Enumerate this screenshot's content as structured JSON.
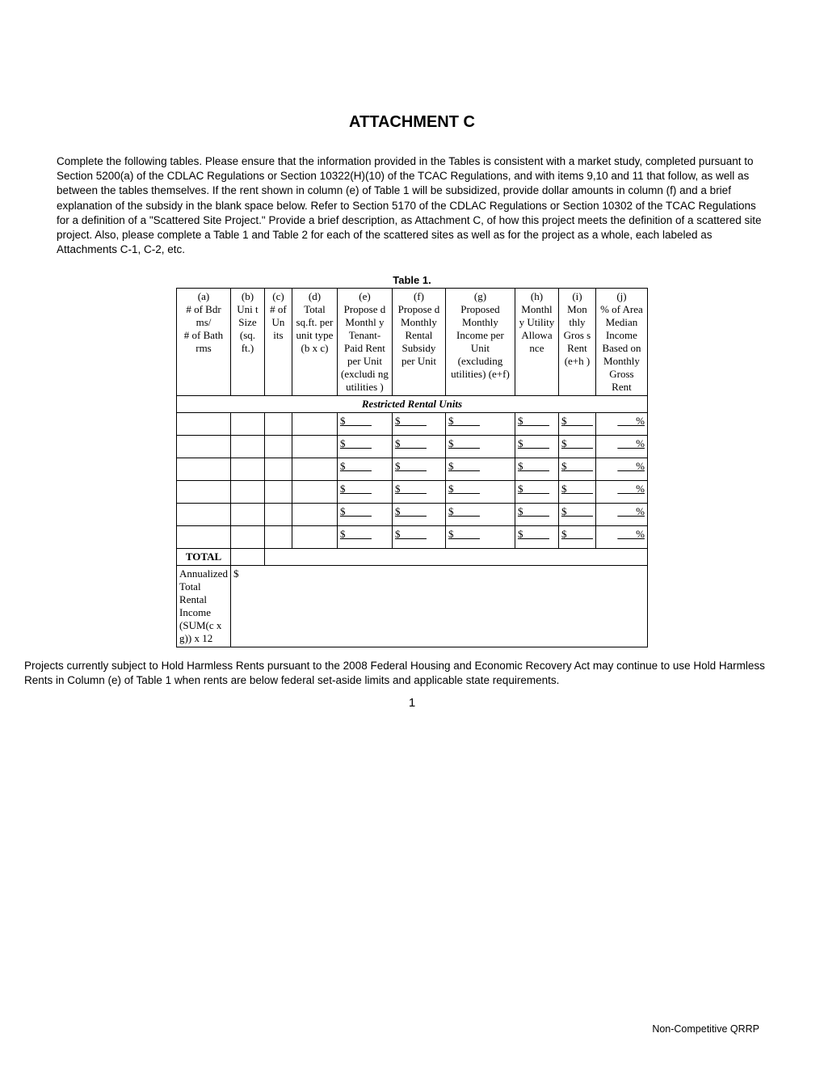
{
  "title": "ATTACHMENT C",
  "intro": "Complete the following tables. Please ensure that the information provided in the Tables is consistent with a market study, completed pursuant to Section 5200(a) of the CDLAC Regulations or Section 10322(H)(10) of the TCAC Regulations, and with items 9,10 and 11 that follow, as well as between the tables themselves.  If the rent shown in column (e) of Table 1 will be subsidized, provide dollar amounts in column (f) and a brief explanation of the subsidy in the blank space below.  Refer to Section 5170 of the CDLAC Regulations or Section 10302 of the TCAC Regulations for a definition of a \"Scattered Site Project.\"  Provide a brief description, as Attachment C, of how this project meets the definition of a scattered site project.  Also, please complete a Table 1 and Table 2 for each of the scattered sites as well as for the project as a whole, each labeled as Attachments C-1, C-2, etc.",
  "table_caption": "Table 1.",
  "headers": {
    "a": "(a)\n# of Bdrms/\n# of Bath rms",
    "b": "(b)\nUnit Size (sq. ft.)",
    "c": "(c)\n# of Units",
    "d": "(d)\nTotal sq.ft. per unit type (b x c)",
    "e": "(e)\nProposed Monthly Tenant-Paid Rent per Unit (excluding utilities)",
    "f": "(f)\nProposed Monthly Rental Subsidy per Unit",
    "g": "(g)\nProposed Monthly Income per Unit (excluding utilities) (e+f)",
    "h": "(h)\nMonthly Utility Allowance",
    "i": "(i)\nMonthly Gross Rent (e+h)",
    "j": "(j)\n% of Area Median Income Based on Monthly Gross Rent"
  },
  "section_label": "Restricted Rental Units",
  "currency": "$",
  "percent": "%",
  "blank_line": "          ",
  "blank_pct": "       ",
  "total_label": "TOTAL",
  "annual_label": "Annualized Total Rental Income (SUM(c x g)) x 12",
  "footnote": "Projects currently subject to Hold Harmless Rents pursuant to the 2008 Federal Housing and Economic Recovery Act may continue to use Hold Harmless Rents in Column (e) of Table 1 when rents are below federal set-aside limits and applicable state requirements.",
  "page_num": "1",
  "footer": "Non-Competitive QRRP",
  "data_row_count": 6
}
